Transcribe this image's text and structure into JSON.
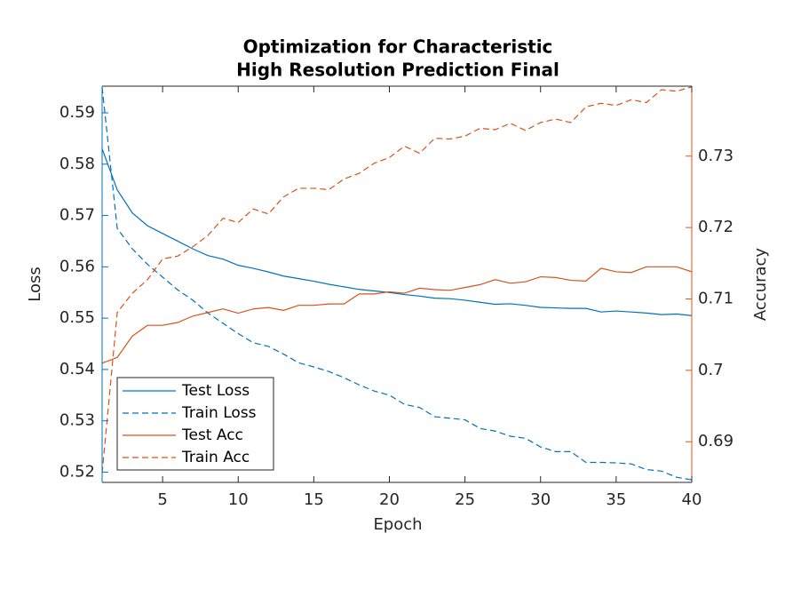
{
  "chart_data": {
    "type": "line",
    "title": [
      "Optimization for Characteristic",
      "High Resolution Prediction Final"
    ],
    "xlabel": "Epoch",
    "ylabel": "Loss",
    "y2label": "Accuracy",
    "x": [
      1,
      2,
      3,
      4,
      5,
      6,
      7,
      8,
      9,
      10,
      11,
      12,
      13,
      14,
      15,
      16,
      17,
      18,
      19,
      20,
      21,
      22,
      23,
      24,
      25,
      26,
      27,
      28,
      29,
      30,
      31,
      32,
      33,
      34,
      35,
      36,
      37,
      38,
      39,
      40
    ],
    "xlim": [
      1,
      40
    ],
    "xticks": [
      5,
      10,
      15,
      20,
      25,
      30,
      35,
      40
    ],
    "ylim": [
      0.518,
      0.5952
    ],
    "yticks": [
      0.52,
      0.53,
      0.54,
      0.55,
      0.56,
      0.57,
      0.58,
      0.59
    ],
    "y2lim": [
      0.6843,
      0.7398
    ],
    "y2ticks": [
      0.69,
      0.7,
      0.71,
      0.72,
      0.73
    ],
    "ycolor": "#0072BD",
    "y2color": "#D95319",
    "legend": "southwest",
    "series": [
      {
        "name": "Test Loss",
        "color": "#0072BD",
        "linestyle": "solid",
        "axis": "y",
        "values": [
          0.583,
          0.575,
          0.5705,
          0.568,
          0.5665,
          0.565,
          0.5635,
          0.5622,
          0.5615,
          0.5603,
          0.5597,
          0.559,
          0.5582,
          0.5577,
          0.5572,
          0.5566,
          0.5561,
          0.5556,
          0.5553,
          0.555,
          0.5546,
          0.5543,
          0.5539,
          0.5538,
          0.5535,
          0.5531,
          0.5527,
          0.5528,
          0.5525,
          0.5521,
          0.552,
          0.5519,
          0.5519,
          0.5512,
          0.5514,
          0.5512,
          0.551,
          0.5507,
          0.5508,
          0.5505
        ]
      },
      {
        "name": "Train Loss",
        "color": "#0072BD",
        "linestyle": "dashed",
        "axis": "y",
        "values": [
          0.595,
          0.5675,
          0.5635,
          0.5605,
          0.558,
          0.5555,
          0.5535,
          0.551,
          0.549,
          0.547,
          0.5452,
          0.5445,
          0.543,
          0.5413,
          0.5405,
          0.5396,
          0.5384,
          0.537,
          0.5358,
          0.535,
          0.5332,
          0.5326,
          0.5308,
          0.5305,
          0.5302,
          0.5285,
          0.528,
          0.527,
          0.5266,
          0.5249,
          0.524,
          0.524,
          0.5219,
          0.5219,
          0.5218,
          0.5216,
          0.5205,
          0.5202,
          0.519,
          0.5185
        ]
      },
      {
        "name": "Test Acc",
        "color": "#D95319",
        "linestyle": "solid",
        "axis": "y2",
        "values": [
          0.701,
          0.7018,
          0.7048,
          0.7063,
          0.7063,
          0.7067,
          0.7076,
          0.7081,
          0.7086,
          0.708,
          0.7086,
          0.7088,
          0.7084,
          0.7091,
          0.7091,
          0.7093,
          0.7093,
          0.7107,
          0.7107,
          0.711,
          0.7108,
          0.7115,
          0.7113,
          0.7112,
          0.7116,
          0.712,
          0.7127,
          0.7122,
          0.7124,
          0.7131,
          0.713,
          0.7126,
          0.7125,
          0.7143,
          0.7138,
          0.7137,
          0.7145,
          0.7145,
          0.7145,
          0.7138
        ]
      },
      {
        "name": "Train Acc",
        "color": "#D95319",
        "linestyle": "dashed",
        "axis": "y2",
        "values": [
          0.6856,
          0.7081,
          0.7108,
          0.7127,
          0.7156,
          0.716,
          0.7173,
          0.7189,
          0.7213,
          0.7207,
          0.7226,
          0.7219,
          0.7243,
          0.7255,
          0.7255,
          0.7253,
          0.7268,
          0.7276,
          0.729,
          0.7298,
          0.7314,
          0.7304,
          0.7325,
          0.7324,
          0.7328,
          0.7339,
          0.7337,
          0.7346,
          0.7336,
          0.7347,
          0.7352,
          0.7347,
          0.7369,
          0.7374,
          0.7371,
          0.7379,
          0.7375,
          0.7393,
          0.7391,
          0.7397
        ]
      }
    ]
  }
}
